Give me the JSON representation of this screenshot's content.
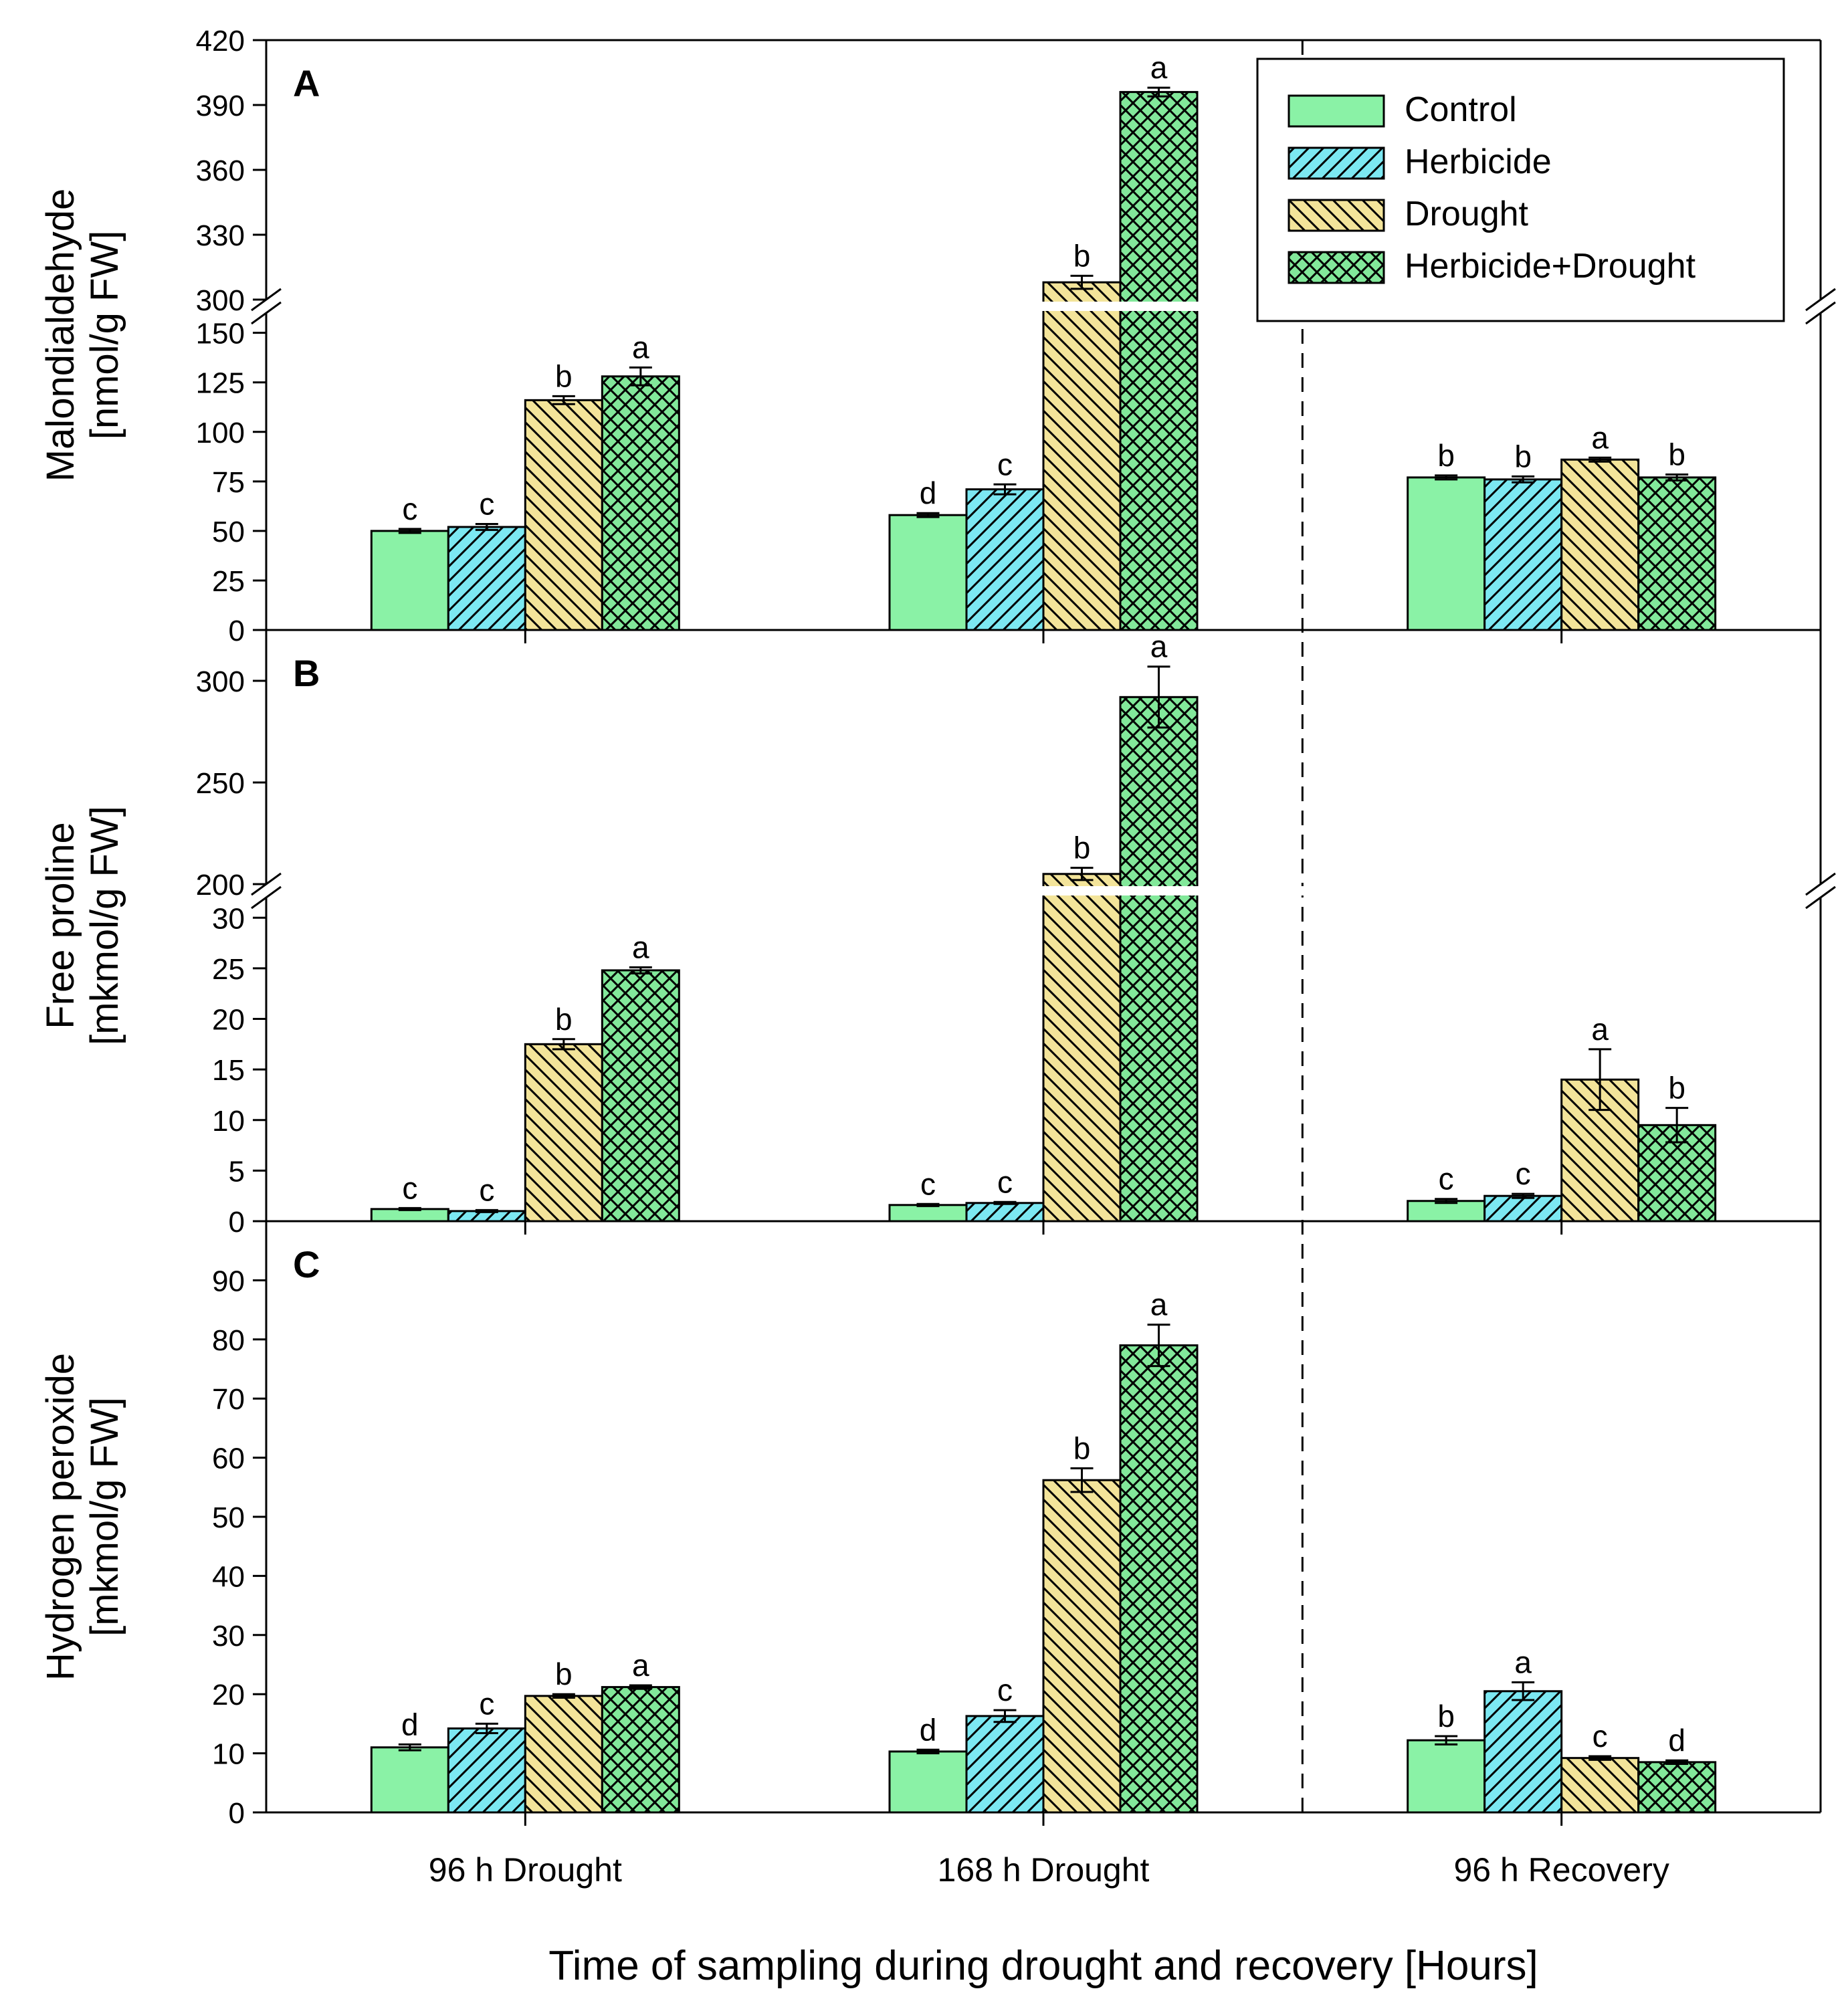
{
  "colors": {
    "control": "#8af2a6",
    "herbicide": "#7ce8f2",
    "drought": "#f3e49a",
    "herbicide_drought": "#82e89a",
    "axis": "#000000"
  },
  "chart_data": {
    "type": "bar",
    "categories": [
      "96 h Drought",
      "168 h Drought",
      "96 h Recovery"
    ],
    "xlabel": "Time of sampling during drought and recovery [Hours]",
    "legend": {
      "placement": "top-right",
      "entries": [
        {
          "name": "Control",
          "pattern": "solid",
          "color_key": "control"
        },
        {
          "name": "Herbicide",
          "pattern": "diag-up",
          "color_key": "herbicide"
        },
        {
          "name": "Drought",
          "pattern": "diag-down",
          "color_key": "drought"
        },
        {
          "name": "Herbicide+Drought",
          "pattern": "cross",
          "color_key": "herbicide_drought"
        }
      ]
    },
    "panels": [
      {
        "label": "A",
        "ylabel_line1": "Malondialdehyde",
        "ylabel_line2": "[nmol/g FW]",
        "axis_break": true,
        "lower_range": [
          0,
          160
        ],
        "lower_ticks": [
          0,
          25,
          50,
          75,
          100,
          125,
          150
        ],
        "upper_range": [
          300,
          420
        ],
        "upper_ticks": [
          300,
          330,
          360,
          390,
          420
        ],
        "series": [
          {
            "name": "Control",
            "values": [
              50,
              58,
              77
            ],
            "errors": [
              1,
              1,
              1
            ],
            "letters": [
              "c",
              "d",
              "b"
            ]
          },
          {
            "name": "Herbicide",
            "values": [
              52,
              71,
              76
            ],
            "errors": [
              1.5,
              2.5,
              1.5
            ],
            "letters": [
              "c",
              "c",
              "b"
            ]
          },
          {
            "name": "Drought",
            "values": [
              116,
              308,
              86
            ],
            "errors": [
              2,
              3,
              1
            ],
            "letters": [
              "b",
              "b",
              "a"
            ]
          },
          {
            "name": "Herbicide+Drought",
            "values": [
              128,
              396,
              77
            ],
            "errors": [
              4.5,
              2,
              1.5
            ],
            "letters": [
              "a",
              "a",
              "b"
            ]
          }
        ]
      },
      {
        "label": "B",
        "ylabel_line1": "Free proline",
        "ylabel_line2": "[mkmol/g FW]",
        "axis_break": true,
        "lower_range": [
          0,
          32
        ],
        "lower_ticks": [
          0,
          5,
          10,
          15,
          20,
          25,
          30
        ],
        "upper_range": [
          200,
          325
        ],
        "upper_ticks": [
          200,
          250,
          300
        ],
        "series": [
          {
            "name": "Control",
            "values": [
              1.2,
              1.6,
              2.0
            ],
            "errors": [
              0.1,
              0.1,
              0.2
            ],
            "letters": [
              "c",
              "c",
              "c"
            ]
          },
          {
            "name": "Herbicide",
            "values": [
              1.0,
              1.8,
              2.5
            ],
            "errors": [
              0.1,
              0.1,
              0.2
            ],
            "letters": [
              "c",
              "c",
              "c"
            ]
          },
          {
            "name": "Drought",
            "values": [
              17.5,
              205,
              14.0
            ],
            "errors": [
              0.5,
              3,
              3.0
            ],
            "letters": [
              "b",
              "b",
              "a"
            ]
          },
          {
            "name": "Herbicide+Drought",
            "values": [
              24.8,
              292,
              9.5
            ],
            "errors": [
              0.3,
              15,
              1.7
            ],
            "letters": [
              "a",
              "a",
              "b"
            ]
          }
        ]
      },
      {
        "label": "C",
        "ylabel_line1": "Hydrogen peroxide",
        "ylabel_line2": "[mkmol/g FW]",
        "axis_break": false,
        "lower_range": [
          0,
          100
        ],
        "lower_ticks": [
          0,
          10,
          20,
          30,
          40,
          50,
          60,
          70,
          80,
          90
        ],
        "series": [
          {
            "name": "Control",
            "values": [
              11,
              10.3,
              12.2
            ],
            "errors": [
              0.5,
              0.3,
              0.7
            ],
            "letters": [
              "d",
              "d",
              "b"
            ]
          },
          {
            "name": "Herbicide",
            "values": [
              14.2,
              16.3,
              20.5
            ],
            "errors": [
              0.8,
              1.0,
              1.5
            ],
            "letters": [
              "c",
              "c",
              "a"
            ]
          },
          {
            "name": "Drought",
            "values": [
              19.7,
              56.2,
              9.2
            ],
            "errors": [
              0.3,
              2.0,
              0.3
            ],
            "letters": [
              "b",
              "b",
              "c"
            ]
          },
          {
            "name": "Herbicide+Drought",
            "values": [
              21.2,
              79,
              8.5
            ],
            "errors": [
              0.3,
              3.5,
              0.3
            ],
            "letters": [
              "a",
              "a",
              "d"
            ]
          }
        ]
      }
    ]
  }
}
